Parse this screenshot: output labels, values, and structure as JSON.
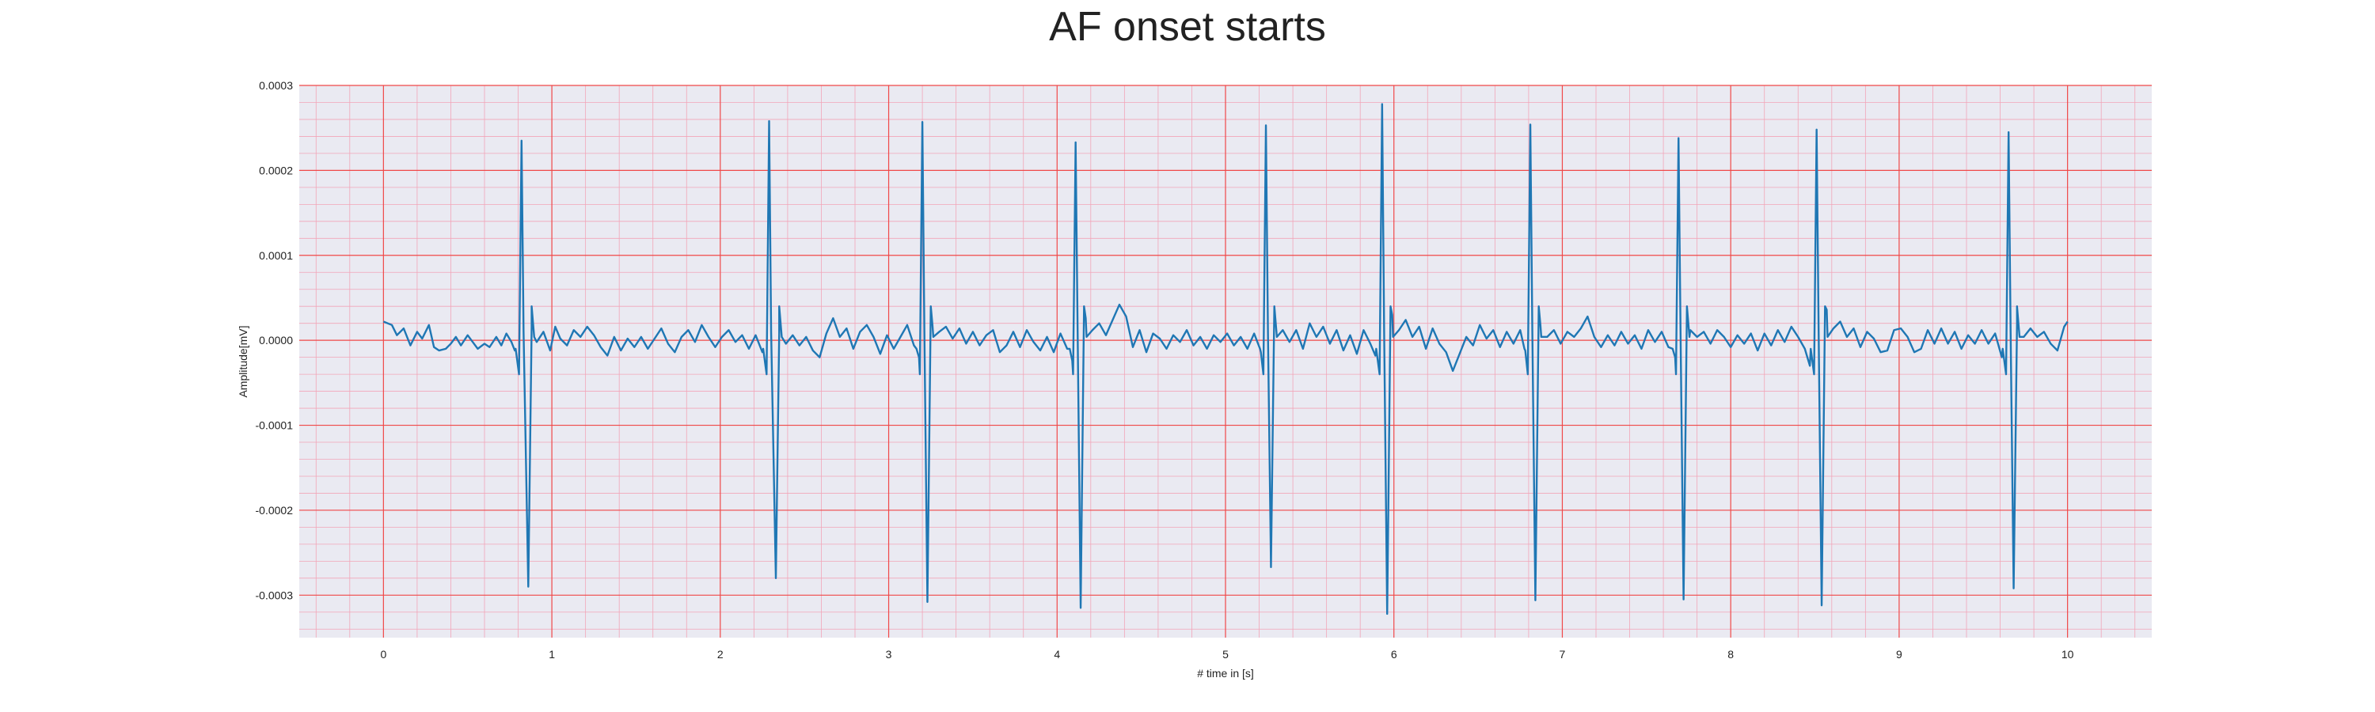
{
  "chart_data": {
    "type": "line",
    "title": "AF onset starts",
    "xlabel": "# time in [s]",
    "ylabel": "Amplitude[mV]",
    "xlim": [
      -0.5,
      10.5
    ],
    "ylim": [
      -0.00035,
      0.0003
    ],
    "x_ticks": [
      0,
      1,
      2,
      3,
      4,
      5,
      6,
      7,
      8,
      9,
      10
    ],
    "x_tick_labels": [
      "0",
      "1",
      "2",
      "3",
      "4",
      "5",
      "6",
      "7",
      "8",
      "9",
      "10"
    ],
    "y_ticks": [
      0.0003,
      0.0002,
      0.0001,
      0,
      -0.0001,
      -0.0002,
      -0.0003
    ],
    "y_tick_labels": [
      "0.0003",
      "0.0002",
      "0.0001",
      "0.0000",
      "-0.0001",
      "-0.0002",
      "-0.0003"
    ],
    "grid": true,
    "minor_grid": true,
    "colors": {
      "background": "#eaeaf2",
      "major_grid": "#f04848",
      "minor_grid": "#f2a5b8",
      "line": "#1f77b4"
    },
    "series": [
      {
        "color": "#1f77b4",
        "baseline_wave": [
          [
            0.0,
            2.2e-05
          ],
          [
            0.05,
            1.8e-05
          ],
          [
            0.08,
            6e-06
          ],
          [
            0.12,
            1.4e-05
          ],
          [
            0.16,
            -6e-06
          ],
          [
            0.2,
            1e-05
          ],
          [
            0.23,
            2e-06
          ],
          [
            0.27,
            1.8e-05
          ],
          [
            0.3,
            -8e-06
          ],
          [
            0.33,
            -1.2e-05
          ],
          [
            0.37,
            -1e-05
          ],
          [
            0.4,
            -4e-06
          ],
          [
            0.43,
            4e-06
          ],
          [
            0.46,
            -6e-06
          ],
          [
            0.5,
            6e-06
          ],
          [
            0.53,
            -2e-06
          ],
          [
            0.56,
            -1e-05
          ],
          [
            0.6,
            -4e-06
          ],
          [
            0.63,
            -8e-06
          ],
          [
            0.67,
            4e-06
          ],
          [
            0.7,
            -6e-06
          ],
          [
            0.73,
            8e-06
          ],
          [
            0.76,
            -2e-06
          ],
          [
            0.78,
            -1.2e-05
          ],
          [
            0.88,
            1.6e-05
          ],
          [
            0.91,
            -2e-06
          ],
          [
            0.95,
            1e-05
          ],
          [
            0.99,
            -1.2e-05
          ],
          [
            1.02,
            1.6e-05
          ],
          [
            1.05,
            2e-06
          ],
          [
            1.09,
            -6e-06
          ],
          [
            1.13,
            1.2e-05
          ],
          [
            1.17,
            4e-06
          ],
          [
            1.21,
            1.6e-05
          ],
          [
            1.25,
            6e-06
          ],
          [
            1.29,
            -8e-06
          ],
          [
            1.33,
            -1.8e-05
          ],
          [
            1.37,
            4e-06
          ],
          [
            1.41,
            -1.2e-05
          ],
          [
            1.45,
            2e-06
          ],
          [
            1.49,
            -8e-06
          ],
          [
            1.53,
            4e-06
          ],
          [
            1.57,
            -1e-05
          ],
          [
            1.61,
            2e-06
          ],
          [
            1.65,
            1.4e-05
          ],
          [
            1.69,
            -4e-06
          ],
          [
            1.73,
            -1.4e-05
          ],
          [
            1.77,
            4e-06
          ],
          [
            1.81,
            1.2e-05
          ],
          [
            1.85,
            -2e-06
          ],
          [
            1.89,
            1.8e-05
          ],
          [
            1.93,
            4e-06
          ],
          [
            1.97,
            -8e-06
          ],
          [
            2.01,
            4e-06
          ],
          [
            2.05,
            1.2e-05
          ],
          [
            2.09,
            -2e-06
          ],
          [
            2.13,
            6e-06
          ],
          [
            2.17,
            -1e-05
          ],
          [
            2.21,
            6e-06
          ],
          [
            2.25,
            -1.4e-05
          ],
          [
            2.35,
            8e-06
          ],
          [
            2.39,
            -4e-06
          ],
          [
            2.43,
            6e-06
          ],
          [
            2.47,
            -6e-06
          ],
          [
            2.51,
            4e-06
          ],
          [
            2.55,
            -1.2e-05
          ],
          [
            2.59,
            -2e-05
          ],
          [
            2.63,
            8e-06
          ],
          [
            2.67,
            2.6e-05
          ],
          [
            2.71,
            4e-06
          ],
          [
            2.75,
            1.4e-05
          ],
          [
            2.79,
            -1e-05
          ],
          [
            2.83,
            1e-05
          ],
          [
            2.87,
            1.8e-05
          ],
          [
            2.91,
            4e-06
          ],
          [
            2.95,
            -1.6e-05
          ],
          [
            2.99,
            6e-06
          ],
          [
            3.03,
            -1e-05
          ],
          [
            3.07,
            4e-06
          ],
          [
            3.11,
            1.8e-05
          ],
          [
            3.15,
            -6e-06
          ],
          [
            3.18,
            -2e-05
          ],
          [
            3.26,
            1.8e-05
          ],
          [
            3.3,
            1e-05
          ],
          [
            3.34,
            1.6e-05
          ],
          [
            3.38,
            2e-06
          ],
          [
            3.42,
            1.4e-05
          ],
          [
            3.46,
            -4e-06
          ],
          [
            3.5,
            1e-05
          ],
          [
            3.54,
            -6e-06
          ],
          [
            3.58,
            6e-06
          ],
          [
            3.62,
            1.2e-05
          ],
          [
            3.66,
            -1.4e-05
          ],
          [
            3.7,
            -6e-06
          ],
          [
            3.74,
            1e-05
          ],
          [
            3.78,
            -8e-06
          ],
          [
            3.82,
            1.2e-05
          ],
          [
            3.86,
            -2e-06
          ],
          [
            3.9,
            -1.2e-05
          ],
          [
            3.94,
            4e-06
          ],
          [
            3.98,
            -1.4e-05
          ],
          [
            4.02,
            8e-06
          ],
          [
            4.06,
            -1e-05
          ],
          [
            4.09,
            -2.4e-05
          ],
          [
            4.17,
            2.6e-05
          ],
          [
            4.21,
            1.2e-05
          ],
          [
            4.25,
            2e-05
          ],
          [
            4.29,
            6e-06
          ],
          [
            4.33,
            2.4e-05
          ],
          [
            4.37,
            4.2e-05
          ],
          [
            4.41,
            2.8e-05
          ],
          [
            4.45,
            -8e-06
          ],
          [
            4.49,
            1.2e-05
          ],
          [
            4.53,
            -1.4e-05
          ],
          [
            4.57,
            8e-06
          ],
          [
            4.61,
            2e-06
          ],
          [
            4.65,
            -1e-05
          ],
          [
            4.69,
            6e-06
          ],
          [
            4.73,
            -2e-06
          ],
          [
            4.77,
            1.2e-05
          ],
          [
            4.81,
            -6e-06
          ],
          [
            4.85,
            4e-06
          ],
          [
            4.89,
            -1e-05
          ],
          [
            4.93,
            6e-06
          ],
          [
            4.97,
            -2e-06
          ],
          [
            5.01,
            8e-06
          ],
          [
            5.05,
            -6e-06
          ],
          [
            5.09,
            4e-06
          ],
          [
            5.13,
            -1e-05
          ],
          [
            5.17,
            8e-06
          ],
          [
            5.21,
            -1.4e-05
          ],
          [
            5.34,
            1.2e-05
          ],
          [
            5.38,
            -2e-06
          ],
          [
            5.42,
            1.2e-05
          ],
          [
            5.46,
            -1e-05
          ],
          [
            5.5,
            2e-05
          ],
          [
            5.54,
            4e-06
          ],
          [
            5.58,
            1.6e-05
          ],
          [
            5.62,
            -4e-06
          ],
          [
            5.66,
            1.2e-05
          ],
          [
            5.7,
            -1.2e-05
          ],
          [
            5.74,
            6e-06
          ],
          [
            5.78,
            -1.6e-05
          ],
          [
            5.82,
            1.2e-05
          ],
          [
            5.86,
            -4e-06
          ],
          [
            5.89,
            -1.8e-05
          ],
          [
            5.99,
            3e-05
          ],
          [
            6.03,
            1.2e-05
          ],
          [
            6.07,
            2.4e-05
          ],
          [
            6.11,
            4e-06
          ],
          [
            6.15,
            1.6e-05
          ],
          [
            6.19,
            -1e-05
          ],
          [
            6.23,
            1.4e-05
          ],
          [
            6.27,
            -4e-06
          ],
          [
            6.31,
            -1.4e-05
          ],
          [
            6.35,
            -3.6e-05
          ],
          [
            6.39,
            -1.6e-05
          ],
          [
            6.43,
            4e-06
          ],
          [
            6.47,
            -6e-06
          ],
          [
            6.51,
            1.8e-05
          ],
          [
            6.55,
            2e-06
          ],
          [
            6.59,
            1.2e-05
          ],
          [
            6.63,
            -8e-06
          ],
          [
            6.67,
            1e-05
          ],
          [
            6.71,
            -4e-06
          ],
          [
            6.75,
            1.2e-05
          ],
          [
            6.78,
            -1.2e-05
          ],
          [
            6.87,
            1.8e-05
          ],
          [
            6.91,
            4e-06
          ],
          [
            6.95,
            1.2e-05
          ],
          [
            6.99,
            -4e-06
          ],
          [
            7.03,
            1e-05
          ],
          [
            7.07,
            4e-06
          ],
          [
            7.11,
            1.4e-05
          ],
          [
            7.15,
            2.8e-05
          ],
          [
            7.19,
            4e-06
          ],
          [
            7.23,
            -8e-06
          ],
          [
            7.27,
            6e-06
          ],
          [
            7.31,
            -6e-06
          ],
          [
            7.35,
            1e-05
          ],
          [
            7.39,
            -4e-06
          ],
          [
            7.43,
            6e-06
          ],
          [
            7.47,
            -1e-05
          ],
          [
            7.51,
            1.2e-05
          ],
          [
            7.55,
            -2e-06
          ],
          [
            7.59,
            1e-05
          ],
          [
            7.63,
            -8e-06
          ],
          [
            7.67,
            -2e-05
          ],
          [
            7.76,
            1.2e-05
          ],
          [
            7.8,
            4e-06
          ],
          [
            7.84,
            1e-05
          ],
          [
            7.88,
            -4e-06
          ],
          [
            7.92,
            1.2e-05
          ],
          [
            7.96,
            4e-06
          ],
          [
            8.0,
            -8e-06
          ],
          [
            8.04,
            6e-06
          ],
          [
            8.08,
            -4e-06
          ],
          [
            8.12,
            8e-06
          ],
          [
            8.16,
            -1.2e-05
          ],
          [
            8.2,
            8e-06
          ],
          [
            8.24,
            -6e-06
          ],
          [
            8.28,
            1.2e-05
          ],
          [
            8.32,
            -2e-06
          ],
          [
            8.36,
            1.6e-05
          ],
          [
            8.4,
            4e-06
          ],
          [
            8.44,
            -1e-05
          ],
          [
            8.47,
            -3e-05
          ],
          [
            8.57,
            3.6e-05
          ],
          [
            8.61,
            1.4e-05
          ],
          [
            8.65,
            2.2e-05
          ],
          [
            8.69,
            4e-06
          ],
          [
            8.73,
            1.4e-05
          ],
          [
            8.77,
            -8e-06
          ],
          [
            8.81,
            1e-05
          ],
          [
            8.85,
            2e-06
          ],
          [
            8.89,
            -1.4e-05
          ],
          [
            8.93,
            -1.2e-05
          ],
          [
            8.97,
            1.2e-05
          ],
          [
            9.01,
            1.4e-05
          ],
          [
            9.05,
            4e-06
          ],
          [
            9.09,
            -1.4e-05
          ],
          [
            9.13,
            -1e-05
          ],
          [
            9.17,
            1.2e-05
          ],
          [
            9.21,
            -4e-06
          ],
          [
            9.25,
            1.4e-05
          ],
          [
            9.29,
            -4e-06
          ],
          [
            9.33,
            1e-05
          ],
          [
            9.37,
            -1e-05
          ],
          [
            9.41,
            6e-06
          ],
          [
            9.45,
            -4e-06
          ],
          [
            9.49,
            1.2e-05
          ],
          [
            9.53,
            -4e-06
          ],
          [
            9.57,
            8e-06
          ],
          [
            9.61,
            -2e-05
          ],
          [
            9.7,
            2e-05
          ],
          [
            9.74,
            4e-06
          ],
          [
            9.78,
            1.4e-05
          ],
          [
            9.82,
            4e-06
          ],
          [
            9.86,
            1e-05
          ],
          [
            9.9,
            -4e-06
          ],
          [
            9.94,
            -1.2e-05
          ],
          [
            9.98,
            1.6e-05
          ],
          [
            10.0,
            2.2e-05
          ]
        ],
        "beats": [
          {
            "r_time": 0.82,
            "r_peak": 0.000235,
            "s_time": 0.86,
            "s_trough": -0.00029
          },
          {
            "r_time": 2.29,
            "r_peak": 0.000258,
            "s_time": 2.33,
            "s_trough": -0.00028
          },
          {
            "r_time": 3.2,
            "r_peak": 0.000257,
            "s_time": 3.23,
            "s_trough": -0.000308
          },
          {
            "r_time": 4.11,
            "r_peak": 0.000233,
            "s_time": 4.14,
            "s_trough": -0.000315
          },
          {
            "r_time": 5.24,
            "r_peak": 0.000253,
            "s_time": 5.27,
            "s_trough": -0.000267
          },
          {
            "r_time": 5.93,
            "r_peak": 0.000278,
            "s_time": 5.96,
            "s_trough": -0.000322
          },
          {
            "r_time": 6.81,
            "r_peak": 0.000254,
            "s_time": 6.84,
            "s_trough": -0.000306
          },
          {
            "r_time": 7.69,
            "r_peak": 0.000238,
            "s_time": 7.72,
            "s_trough": -0.000305
          },
          {
            "r_time": 8.51,
            "r_peak": 0.000248,
            "s_time": 8.54,
            "s_trough": -0.000312
          },
          {
            "r_time": 9.65,
            "r_peak": 0.000245,
            "s_time": 9.68,
            "s_trough": -0.000292
          }
        ]
      }
    ]
  }
}
